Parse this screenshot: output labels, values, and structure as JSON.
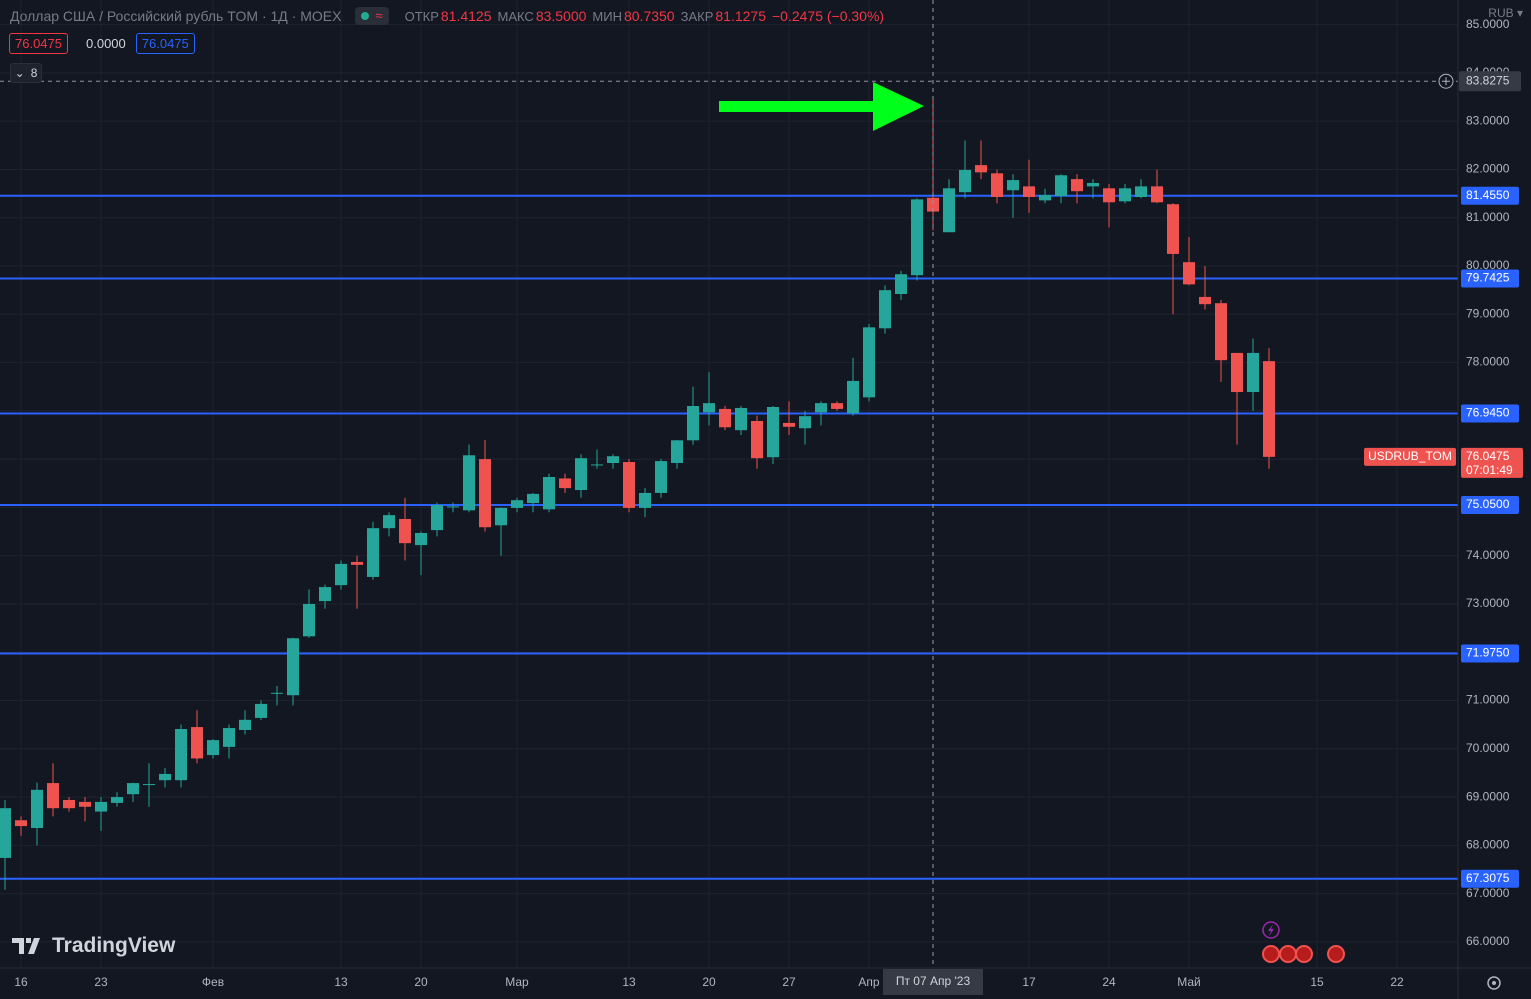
{
  "chart_data": {
    "type": "candlestick",
    "title": "Доллар США / Российский рубль TOM · 1Д · MOEX",
    "status_line": {
      "open": {
        "label": "ОТКР",
        "value": "81.4125"
      },
      "high": {
        "label": "МАКС",
        "value": "83.5000"
      },
      "low": {
        "label": "МИН",
        "value": "80.7350"
      },
      "close": {
        "label": "ЗАКР",
        "value": "81.1275"
      },
      "change": "−0.2475 (−0.30%)"
    },
    "inputs": {
      "first": "76.0475",
      "middle": "0.0000",
      "second": "76.0475",
      "count": "8"
    },
    "currency": "RUB",
    "brand": "TradingView",
    "symbol": "USDRUB_TOM",
    "countdown": "07:01:49",
    "up_color": "#26a69a",
    "down_color": "#ef5350",
    "x": [
      0,
      1,
      2,
      3,
      4,
      5,
      6,
      7,
      8,
      9,
      10,
      11,
      12,
      13,
      14,
      15,
      16,
      17,
      18,
      19,
      20,
      21,
      22,
      23,
      24,
      25,
      26,
      27,
      28,
      29,
      30,
      31,
      32,
      33,
      34,
      35,
      36,
      37,
      38,
      39,
      40,
      41,
      42,
      43,
      44,
      45,
      46,
      47,
      48,
      49,
      50,
      51,
      52,
      53,
      54,
      55,
      56,
      57,
      58,
      59,
      60,
      61,
      62,
      63,
      64,
      65,
      66,
      67,
      68,
      69,
      70,
      71,
      72,
      73,
      74,
      75,
      76,
      77,
      78,
      79
    ],
    "open": [
      67.74,
      68.52,
      68.36,
      69.29,
      68.94,
      68.9,
      68.7,
      68.88,
      69.06,
      69.25,
      69.35,
      69.35,
      70.45,
      69.87,
      70.04,
      70.39,
      70.64,
      71.15,
      71.11,
      72.33,
      73.06,
      73.39,
      73.87,
      73.56,
      74.57,
      74.76,
      74.22,
      74.53,
      75.0,
      74.94,
      76.0,
      74.63,
      74.99,
      75.09,
      74.96,
      75.6,
      75.36,
      75.87,
      75.92,
      75.94,
      74.99,
      75.3,
      75.92,
      76.39,
      76.97,
      77.04,
      76.6,
      76.79,
      76.04,
      76.75,
      76.64,
      76.97,
      77.16,
      76.95,
      77.28,
      78.71,
      79.42,
      79.81,
      81.4125,
      80.7,
      81.53,
      82.09,
      81.92,
      81.57,
      81.65,
      81.36,
      81.45,
      81.8,
      81.65,
      81.61,
      81.34,
      81.43,
      81.65,
      81.28,
      80.08,
      79.36,
      79.23,
      78.2,
      77.39,
      78.03
    ],
    "high": [
      68.94,
      68.6,
      69.3,
      69.7,
      69.0,
      69.0,
      69.0,
      69.1,
      69.3,
      69.7,
      69.6,
      70.5,
      70.8,
      70.2,
      70.5,
      70.8,
      71.0,
      71.3,
      72.3,
      73.3,
      73.4,
      73.9,
      74.0,
      74.7,
      74.9,
      75.2,
      74.5,
      75.1,
      75.1,
      76.3,
      76.4,
      75.0,
      75.2,
      75.3,
      75.7,
      75.7,
      76.1,
      76.2,
      76.1,
      76.0,
      75.4,
      76.0,
      76.4,
      77.5,
      77.8,
      77.1,
      77.1,
      76.9,
      77.1,
      77.2,
      77.0,
      77.2,
      77.2,
      78.1,
      78.8,
      79.6,
      79.9,
      81.4,
      83.5,
      81.8,
      82.6,
      82.6,
      82.0,
      81.9,
      82.2,
      81.6,
      81.9,
      81.9,
      81.8,
      81.7,
      81.7,
      81.8,
      82.0,
      81.3,
      80.6,
      80.0,
      79.3,
      78.2,
      78.5,
      78.3
    ],
    "low": [
      67.08,
      68.2,
      68.0,
      68.6,
      68.7,
      68.5,
      68.3,
      68.8,
      68.9,
      68.8,
      69.2,
      69.2,
      69.7,
      69.8,
      69.8,
      70.3,
      70.6,
      70.9,
      70.9,
      72.3,
      72.9,
      73.3,
      72.9,
      73.5,
      74.4,
      73.9,
      73.6,
      74.4,
      74.9,
      74.9,
      74.5,
      74.0,
      74.9,
      74.9,
      74.9,
      75.3,
      75.2,
      75.8,
      75.8,
      74.9,
      74.8,
      75.2,
      75.8,
      76.3,
      76.7,
      76.6,
      76.5,
      75.8,
      75.9,
      76.5,
      76.3,
      76.7,
      77.0,
      76.9,
      77.2,
      78.6,
      79.3,
      79.7,
      80.735,
      80.7,
      81.4,
      81.8,
      81.3,
      81.0,
      81.1,
      81.3,
      81.3,
      81.3,
      81.4,
      80.8,
      81.3,
      81.4,
      81.3,
      79.0,
      79.6,
      79.1,
      77.6,
      76.3,
      77.0,
      75.8
    ],
    "close": [
      68.77,
      68.4,
      69.15,
      68.77,
      68.77,
      68.8,
      68.9,
      69.0,
      69.29,
      69.27,
      69.48,
      70.41,
      69.8,
      70.18,
      70.43,
      70.6,
      70.93,
      71.16,
      72.29,
      73.0,
      73.35,
      73.83,
      73.81,
      74.57,
      74.84,
      74.26,
      74.47,
      75.05,
      75.02,
      76.08,
      74.59,
      74.99,
      75.15,
      75.28,
      75.63,
      75.4,
      76.02,
      75.89,
      76.06,
      74.99,
      75.3,
      75.96,
      76.39,
      77.1,
      77.16,
      76.66,
      77.06,
      76.02,
      77.08,
      76.67,
      76.89,
      77.16,
      77.04,
      77.62,
      78.73,
      79.5,
      79.83,
      81.38,
      81.1275,
      81.61,
      81.99,
      81.94,
      81.43,
      81.78,
      81.43,
      81.47,
      81.88,
      81.55,
      81.72,
      81.32,
      81.61,
      81.65,
      81.32,
      80.25,
      79.62,
      79.21,
      78.05,
      77.39,
      78.2,
      76.0475
    ],
    "last_price": {
      "value": 76.0475,
      "label": "76.0475"
    },
    "hlines": [
      {
        "value": 81.455,
        "label": "81.4550"
      },
      {
        "value": 79.7425,
        "label": "79.7425"
      },
      {
        "value": 76.945,
        "label": "76.9450"
      },
      {
        "value": 75.05,
        "label": "75.0500"
      },
      {
        "value": 71.975,
        "label": "71.9750"
      },
      {
        "value": 67.3075,
        "label": "67.3075"
      }
    ],
    "hline_color": "#2962ff",
    "crosshair": {
      "x": {
        "value": 58,
        "label": "Пт 07 Апр '23"
      },
      "y": {
        "value": 83.8275,
        "label": "83.8275"
      }
    },
    "xlim": [
      -0.3125,
      90.8125
    ],
    "ylim": [
      65.46,
      85.51
    ],
    "xticks": [
      {
        "value": 1,
        "label": "16"
      },
      {
        "value": 6,
        "label": "23"
      },
      {
        "value": 13,
        "label": "Фев"
      },
      {
        "value": 21,
        "label": "13"
      },
      {
        "value": 26,
        "label": "20"
      },
      {
        "value": 32,
        "label": "Мар"
      },
      {
        "value": 39,
        "label": "13"
      },
      {
        "value": 44,
        "label": "20"
      },
      {
        "value": 49,
        "label": "27"
      },
      {
        "value": 54,
        "label": "Апр"
      },
      {
        "value": 64,
        "label": "17"
      },
      {
        "value": 69,
        "label": "24"
      },
      {
        "value": 74,
        "label": "Май"
      },
      {
        "value": 82,
        "label": "15"
      },
      {
        "value": 87,
        "label": "22"
      }
    ],
    "yticks": [
      {
        "value": 66,
        "label": "66.0000"
      },
      {
        "value": 67,
        "label": "67.0000"
      },
      {
        "value": 68,
        "label": "68.0000"
      },
      {
        "value": 69,
        "label": "69.0000"
      },
      {
        "value": 70,
        "label": "70.0000"
      },
      {
        "value": 71,
        "label": "71.0000"
      },
      {
        "value": 72,
        "label": "72.0000"
      },
      {
        "value": 73,
        "label": "73.0000"
      },
      {
        "value": 74,
        "label": "74.0000"
      },
      {
        "value": 75,
        "label": "75.0000"
      },
      {
        "value": 76,
        "label": "76.0000"
      },
      {
        "value": 77,
        "label": "77.0000"
      },
      {
        "value": 78,
        "label": "78.0000"
      },
      {
        "value": 79,
        "label": "79.0000"
      },
      {
        "value": 80,
        "label": "80.0000"
      },
      {
        "value": 81,
        "label": "81.0000"
      },
      {
        "value": 82,
        "label": "82.0000"
      },
      {
        "value": 83,
        "label": "83.0000"
      },
      {
        "value": 84,
        "label": "84.0000"
      },
      {
        "value": 85,
        "label": "85.0000"
      }
    ],
    "grid": true
  }
}
